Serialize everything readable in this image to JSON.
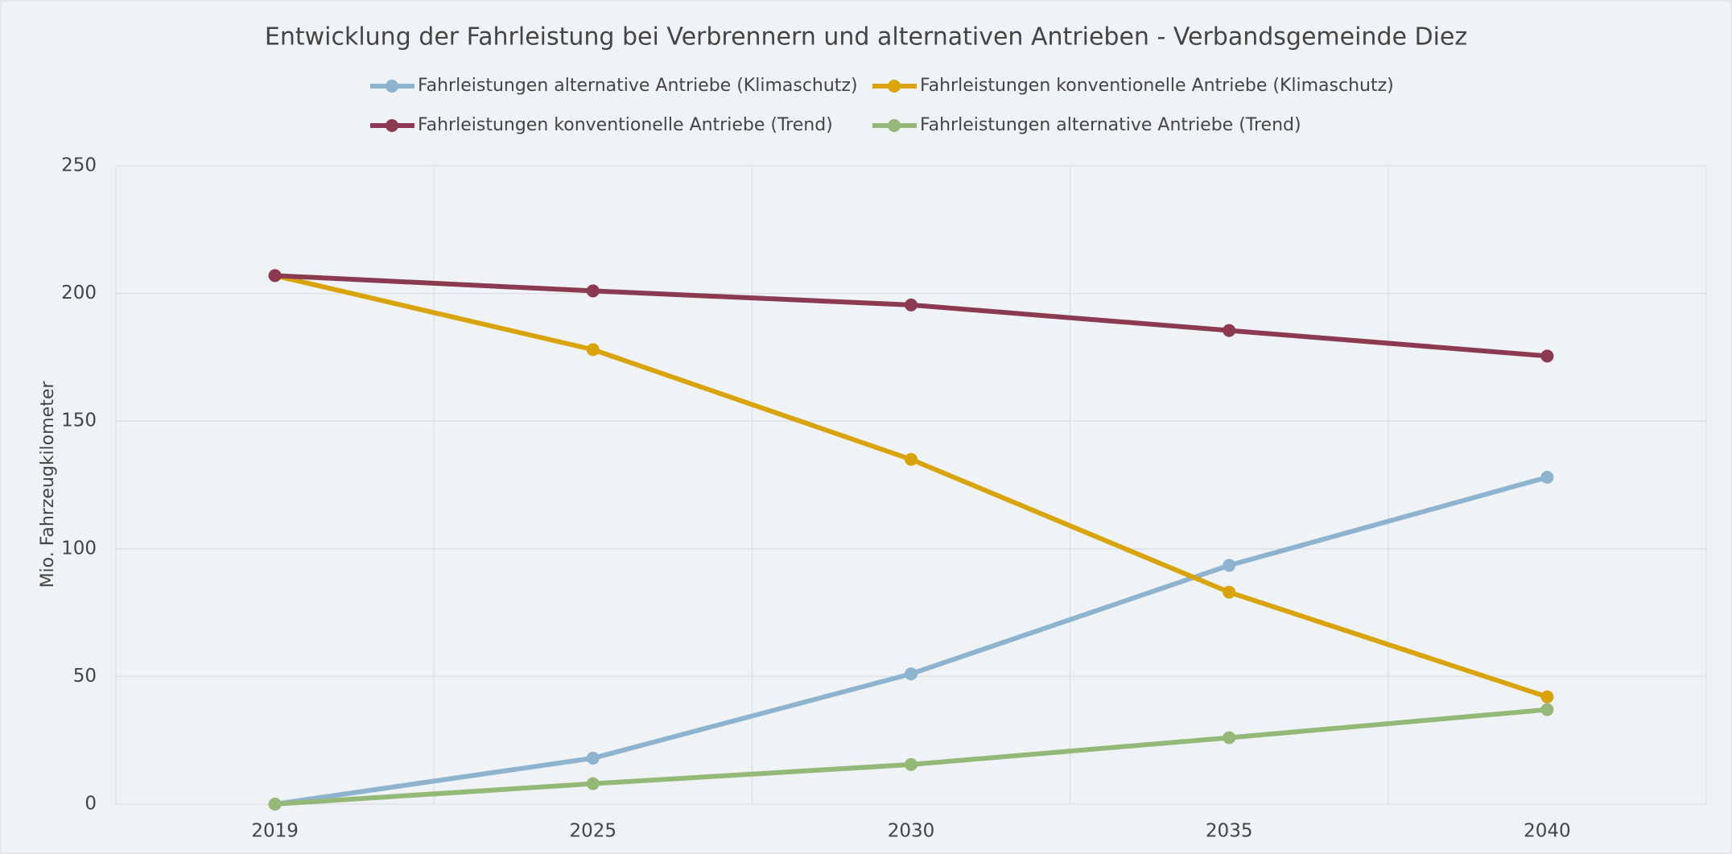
{
  "chart_data": {
    "type": "line",
    "title": "Entwicklung der Fahrleistung bei Verbrennern und alternativen Antrieben - Verbandsgemeinde Diez",
    "y_label": "Mio. Fahrzeugkilometer",
    "categories": [
      "2019",
      "2025",
      "2030",
      "2035",
      "2040"
    ],
    "series": [
      {
        "name": "Fahrleistungen alternative Antriebe (Klimaschutz)",
        "color": "#8db3cf",
        "values": [
          0,
          18,
          51,
          93.5,
          128
        ]
      },
      {
        "name": "Fahrleistungen konventionelle Antriebe (Klimaschutz)",
        "color": "#d9a30c",
        "values": [
          207,
          178,
          135,
          83,
          42
        ]
      },
      {
        "name": "Fahrleistungen konventionelle Antriebe (Trend)",
        "color": "#8b3a52",
        "values": [
          207,
          201,
          195.5,
          185.5,
          175.5
        ]
      },
      {
        "name": "Fahrleistungen alternative Antriebe (Trend)",
        "color": "#93b878",
        "values": [
          0,
          8,
          15.5,
          26,
          37
        ]
      }
    ],
    "ylim": [
      0,
      250
    ],
    "yticks": [
      0,
      50,
      100,
      150,
      200,
      250
    ],
    "grid": true,
    "legend": "top"
  }
}
